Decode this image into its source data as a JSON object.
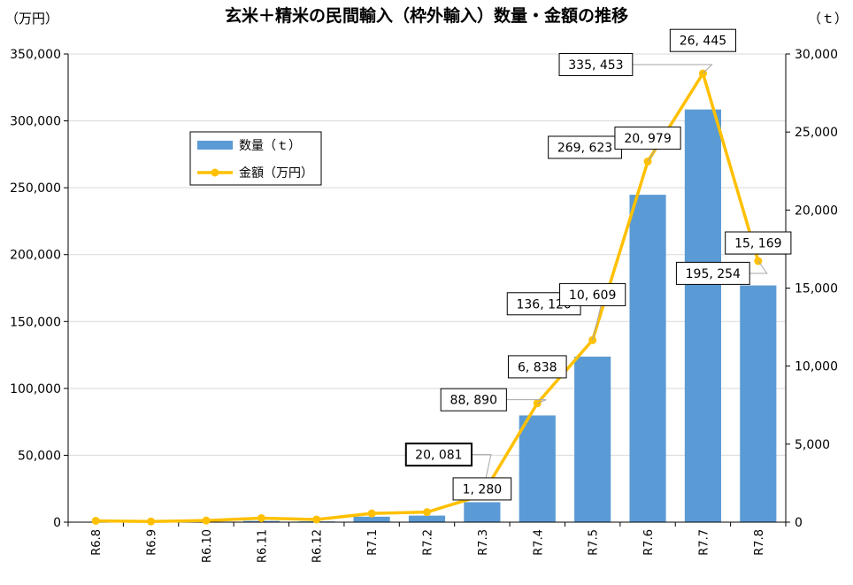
{
  "chart_data": {
    "type": "bar+line",
    "title": "玄米＋精米の民間輸入（枠外輸入）数量・金額の推移",
    "left_unit": "（万円）",
    "right_unit": "（ｔ）",
    "categories": [
      "R6.8",
      "R6.9",
      "R6.10",
      "R6.11",
      "R6.12",
      "R7.1",
      "R7.2",
      "R7.3",
      "R7.4",
      "R7.5",
      "R7.6",
      "R7.7",
      "R7.8"
    ],
    "y_left": {
      "range": [
        0,
        350000
      ],
      "ticks": [
        "0",
        "50,000",
        "100,000",
        "150,000",
        "200,000",
        "250,000",
        "300,000",
        "350,000"
      ],
      "tick_values": [
        0,
        50000,
        100000,
        150000,
        200000,
        250000,
        300000,
        350000
      ]
    },
    "y_right": {
      "range": [
        0,
        30000
      ],
      "ticks": [
        "0",
        "5,000",
        "10,000",
        "15,000",
        "20,000",
        "25,000",
        "30,000"
      ],
      "tick_values": [
        0,
        5000,
        10000,
        15000,
        20000,
        25000,
        30000
      ]
    },
    "grid": true,
    "legend_position": "top-left",
    "series": [
      {
        "name": "数量（ｔ）",
        "type": "bar",
        "axis": "right",
        "color": "#5b9bd5",
        "values": [
          5,
          5,
          20,
          80,
          50,
          350,
          420,
          1280,
          6838,
          10609,
          20979,
          26445,
          15169
        ],
        "labels": [
          "",
          "",
          "",
          "",
          "",
          "",
          "",
          "1, 280",
          "6, 838",
          "10, 609",
          "20, 979",
          "26, 445",
          "15, 169"
        ]
      },
      {
        "name": "金額（万円）",
        "type": "line",
        "axis": "left",
        "color": "#ffc000",
        "values": [
          1000,
          500,
          1200,
          3000,
          2000,
          6500,
          7500,
          20081,
          88890,
          136120,
          269623,
          335453,
          195254
        ],
        "labels": [
          "",
          "",
          "",
          "",
          "",
          "",
          "",
          "20, 081",
          "88, 890",
          "136, 120",
          "269, 623",
          "335, 453",
          "195, 254"
        ]
      }
    ]
  }
}
